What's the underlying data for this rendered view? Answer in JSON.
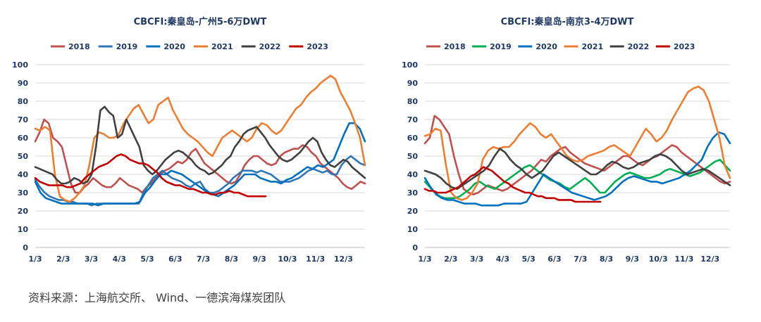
{
  "source_note": "资料来源：上海航交所、 Wind、一德滨海煤炭团队",
  "chart_data": [
    {
      "type": "line",
      "title": "CBCFI:秦皇岛-广州5-6万DWT",
      "ylim": [
        0,
        100
      ],
      "yticks": [
        "0",
        "10",
        "20",
        "30",
        "40",
        "50",
        "60",
        "70",
        "80",
        "90",
        "100"
      ],
      "xticks": [
        "1/3",
        "2/3",
        "3/3",
        "4/3",
        "5/3",
        "6/3",
        "7/3",
        "8/3",
        "9/3",
        "10/3",
        "11/3",
        "12/3"
      ],
      "x_range_weeks": [
        0,
        51
      ],
      "grid": true,
      "legend_position": "top",
      "series": [
        {
          "name": "2018",
          "color": "#c0504d",
          "values": [
            58,
            63,
            70,
            68,
            60,
            58,
            55,
            45,
            35,
            30,
            30,
            33,
            35,
            38,
            36,
            34,
            33,
            33,
            35,
            38,
            36,
            34,
            33,
            32,
            30,
            33,
            35,
            38,
            40,
            42,
            43,
            45,
            47,
            46,
            48,
            52,
            54,
            50,
            46,
            44,
            42,
            40,
            38,
            36,
            35,
            36,
            40,
            45,
            48,
            50,
            50,
            48,
            46,
            45,
            46,
            50,
            52,
            53,
            54,
            54,
            56,
            55,
            52,
            50,
            46,
            44,
            42,
            40,
            38,
            35,
            33,
            32,
            34,
            36,
            35
          ]
        },
        {
          "name": "2019",
          "color": "#2e75b6",
          "values": [
            37,
            33,
            30,
            28,
            27,
            26,
            26,
            25,
            25,
            24,
            24,
            24,
            23,
            24,
            24,
            24,
            24,
            24,
            24,
            24,
            24,
            24,
            24,
            30,
            34,
            38,
            40,
            42,
            40,
            38,
            37,
            36,
            34,
            33,
            35,
            36,
            32,
            30,
            30,
            31,
            33,
            35,
            38,
            40,
            42,
            42,
            42,
            41,
            42,
            41,
            40,
            38,
            36,
            36,
            36,
            37,
            38,
            40,
            42,
            43,
            42,
            41,
            42,
            40,
            40,
            45,
            48,
            50,
            48,
            46,
            45
          ]
        },
        {
          "name": "2020",
          "color": "#0070c0",
          "values": [
            36,
            30,
            27,
            26,
            25,
            24,
            24,
            24,
            24,
            24,
            24,
            24,
            23,
            24,
            24,
            24,
            24,
            24,
            24,
            24,
            25,
            30,
            33,
            37,
            40,
            40,
            42,
            41,
            40,
            38,
            36,
            34,
            32,
            30,
            29,
            28,
            30,
            32,
            34,
            37,
            40,
            40,
            40,
            38,
            37,
            36,
            36,
            35,
            37,
            38,
            40,
            42,
            44,
            43,
            45,
            44,
            46,
            48,
            55,
            62,
            68,
            68,
            65,
            58
          ]
        },
        {
          "name": "2021",
          "color": "#ed7d31",
          "values": [
            65,
            64,
            66,
            64,
            40,
            28,
            26,
            25,
            27,
            30,
            34,
            45,
            60,
            63,
            62,
            60,
            60,
            62,
            68,
            72,
            76,
            78,
            73,
            68,
            70,
            78,
            80,
            82,
            75,
            70,
            65,
            62,
            60,
            58,
            55,
            52,
            50,
            55,
            60,
            62,
            64,
            62,
            60,
            58,
            60,
            65,
            68,
            67,
            64,
            62,
            64,
            68,
            72,
            76,
            78,
            82,
            85,
            87,
            90,
            92,
            94,
            92,
            85,
            80,
            75,
            68,
            60,
            45
          ]
        },
        {
          "name": "2022",
          "color": "#404040",
          "values": [
            44,
            43,
            42,
            41,
            40,
            37,
            35,
            35,
            36,
            38,
            37,
            35,
            36,
            40,
            55,
            75,
            77,
            74,
            72,
            60,
            62,
            70,
            65,
            60,
            55,
            45,
            42,
            40,
            42,
            45,
            48,
            50,
            52,
            53,
            52,
            50,
            48,
            45,
            43,
            42,
            40,
            41,
            43,
            45,
            48,
            50,
            55,
            58,
            62,
            64,
            65,
            66,
            63,
            60,
            56,
            53,
            50,
            48,
            47,
            48,
            50,
            52,
            55,
            58,
            60,
            58,
            52,
            48,
            45,
            44,
            46,
            48,
            47,
            44,
            42,
            40,
            38
          ]
        },
        {
          "name": "2023",
          "color": "#c00000",
          "values": [
            38,
            36,
            35,
            34,
            34,
            34,
            34,
            33,
            33,
            34,
            35,
            38,
            40,
            42,
            44,
            45,
            46,
            48,
            50,
            51,
            50,
            48,
            47,
            46,
            46,
            45,
            43,
            41,
            38,
            36,
            35,
            34,
            34,
            33,
            32,
            32,
            31,
            30,
            30,
            29,
            29,
            30,
            30,
            31,
            30,
            30,
            29,
            28,
            28,
            28,
            28,
            28
          ]
        }
      ]
    },
    {
      "type": "line",
      "title": "CBCFI:秦皇岛-南京3-4万DWT",
      "ylim": [
        0,
        100
      ],
      "yticks": [
        "0",
        "10",
        "20",
        "30",
        "40",
        "50",
        "60",
        "70",
        "80",
        "90",
        "100"
      ],
      "xticks": [
        "1/3",
        "2/3",
        "3/3",
        "4/3",
        "5/3",
        "6/3",
        "7/3",
        "8/3",
        "9/3",
        "10/3",
        "11/3",
        "12/3"
      ],
      "x_range_weeks": [
        0,
        51
      ],
      "grid": true,
      "legend_position": "top",
      "series": [
        {
          "name": "2018",
          "color": "#c0504d",
          "values": [
            57,
            60,
            72,
            70,
            66,
            62,
            50,
            40,
            32,
            30,
            29,
            30,
            32,
            34,
            33,
            32,
            31,
            32,
            34,
            36,
            38,
            40,
            42,
            45,
            48,
            47,
            50,
            52,
            54,
            55,
            52,
            50,
            48,
            46,
            45,
            44,
            43,
            42,
            44,
            46,
            48,
            50,
            50,
            48,
            46,
            45,
            47,
            49,
            50,
            52,
            54,
            56,
            55,
            52,
            50,
            48,
            46,
            44,
            42,
            40,
            38,
            36,
            35,
            36
          ]
        },
        {
          "name": "2019",
          "color": "#00b050",
          "values": [
            36,
            33,
            30,
            28,
            27,
            27,
            27,
            28,
            30,
            32,
            35,
            36,
            34,
            33,
            32,
            34,
            36,
            38,
            40,
            42,
            44,
            45,
            43,
            41,
            39,
            37,
            36,
            35,
            33,
            32,
            34,
            36,
            38,
            36,
            33,
            30,
            30,
            33,
            36,
            38,
            40,
            41,
            40,
            39,
            38,
            38,
            39,
            40,
            42,
            43,
            42,
            41,
            40,
            39,
            40,
            41,
            43,
            45,
            47,
            48,
            45,
            42
          ]
        },
        {
          "name": "2020",
          "color": "#0070c0",
          "values": [
            38,
            33,
            29,
            27,
            26,
            26,
            25,
            24,
            24,
            24,
            23,
            23,
            23,
            23,
            24,
            24,
            24,
            24,
            25,
            30,
            35,
            40,
            38,
            36,
            34,
            32,
            30,
            29,
            28,
            27,
            26,
            27,
            28,
            30,
            33,
            36,
            38,
            39,
            38,
            37,
            36,
            36,
            35,
            36,
            37,
            38,
            40,
            42,
            45,
            48,
            55,
            60,
            63,
            62,
            57
          ]
        },
        {
          "name": "2021",
          "color": "#ed7d31",
          "values": [
            61,
            62,
            65,
            64,
            45,
            30,
            27,
            26,
            27,
            30,
            35,
            48,
            53,
            55,
            54,
            55,
            55,
            58,
            62,
            65,
            68,
            66,
            62,
            60,
            62,
            58,
            54,
            50,
            48,
            47,
            48,
            50,
            51,
            52,
            53,
            55,
            56,
            54,
            52,
            50,
            55,
            60,
            65,
            62,
            58,
            60,
            64,
            70,
            75,
            80,
            85,
            87,
            88,
            86,
            80,
            70,
            60,
            45,
            38
          ]
        },
        {
          "name": "2022",
          "color": "#404040",
          "values": [
            42,
            41,
            40,
            38,
            35,
            33,
            32,
            34,
            36,
            38,
            40,
            42,
            45,
            50,
            54,
            52,
            48,
            45,
            43,
            40,
            38,
            40,
            42,
            46,
            50,
            52,
            50,
            48,
            46,
            44,
            42,
            40,
            40,
            42,
            45,
            47,
            46,
            44,
            43,
            44,
            46,
            47,
            48,
            50,
            51,
            50,
            48,
            45,
            42,
            40,
            41,
            42,
            43,
            42,
            40,
            38,
            36,
            34
          ]
        },
        {
          "name": "2023",
          "color": "#c00000",
          "values": [
            32,
            31,
            31,
            30,
            30,
            30,
            31,
            32,
            33,
            35,
            37,
            39,
            40,
            42,
            44,
            43,
            42,
            40,
            38,
            36,
            35,
            33,
            32,
            31,
            30,
            30,
            29,
            28,
            28,
            27,
            27,
            27,
            26,
            26,
            26,
            26,
            25,
            25,
            25,
            25,
            25,
            25,
            25
          ]
        }
      ]
    }
  ]
}
